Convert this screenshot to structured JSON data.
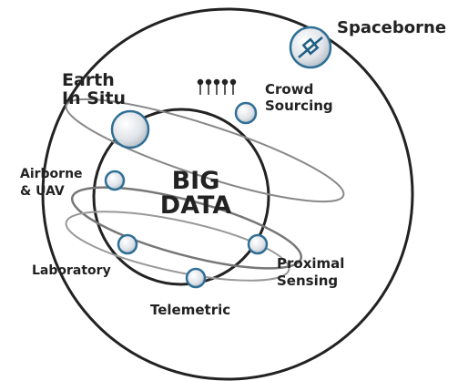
{
  "center": {
    "lines": [
      "BIG",
      "DATA"
    ]
  },
  "nodes": [
    {
      "lines": [
        "Spaceborne"
      ]
    },
    {
      "lines": [
        "Earth",
        "In Situ"
      ]
    },
    {
      "lines": [
        "Crowd",
        "Sourcing"
      ]
    },
    {
      "lines": [
        "Airborne",
        "& UAV"
      ]
    },
    {
      "lines": [
        "Laboratory"
      ]
    },
    {
      "lines": [
        "Proximal",
        "Sensing"
      ]
    },
    {
      "lines": [
        "Telemetric"
      ]
    }
  ]
}
